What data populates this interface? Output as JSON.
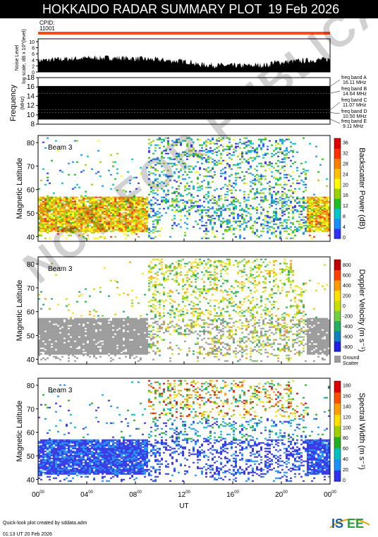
{
  "header": {
    "title": "HOKKAIDO RADAR SUMMARY PLOT",
    "date": "19 Feb 2026"
  },
  "cpid": {
    "label": "CPID:",
    "value": "11001"
  },
  "colors": {
    "orange_bar": "#ff4a14",
    "header_bg": "#000000"
  },
  "noise_panel": {
    "ylabel": "Noise Level",
    "ylabel2": "log scale, dB x 10^(level)",
    "ticks": [
      "0",
      "2",
      "4",
      "6",
      "8",
      "10"
    ]
  },
  "freq_panel": {
    "ylabel": "Frequency",
    "unit": "(MHz)",
    "ticks": [
      "8",
      "10",
      "12",
      "14",
      "16",
      "18"
    ],
    "bands": [
      {
        "name": "freq band A",
        "value": "16.11 MHz"
      },
      {
        "name": "freq band B",
        "value": "14.64 MHz"
      },
      {
        "name": "freq band C",
        "value": "11.07 MHz"
      },
      {
        "name": "freq band D",
        "value": "10.50 MHz"
      },
      {
        "name": "freq band E",
        "value": "9.11 MHz"
      }
    ]
  },
  "chart_data": [
    {
      "type": "heatmap",
      "panel": "power",
      "beam_label": "Beam 3",
      "ylabel": "Magnetic Latitude",
      "yticks": [
        "40",
        "50",
        "60",
        "70",
        "80"
      ],
      "ylim": [
        38,
        83
      ],
      "colorbar_label": "Backscatter Power (dB)",
      "colorbar_ticks": [
        "0",
        "4",
        "8",
        "12",
        "16",
        "20",
        "24",
        "28",
        "32",
        "36"
      ],
      "zlim": [
        0,
        38
      ]
    },
    {
      "type": "heatmap",
      "panel": "velocity",
      "beam_label": "Beam 3",
      "ylabel": "Magnetic Latitude",
      "yticks": [
        "40",
        "50",
        "60",
        "70",
        "80"
      ],
      "ylim": [
        38,
        83
      ],
      "colorbar_label": "Doppler Velocity (m s⁻¹)",
      "colorbar_ticks": [
        "800",
        "600",
        "400",
        "200",
        "0",
        "-200",
        "-400",
        "-600",
        "-800"
      ],
      "zlim": [
        -900,
        900
      ],
      "ground_scatter_label": [
        "Ground",
        "Scatter"
      ]
    },
    {
      "type": "heatmap",
      "panel": "width",
      "beam_label": "Beam 3",
      "ylabel": "Magnetic Latitude",
      "yticks": [
        "40",
        "50",
        "60",
        "70",
        "80"
      ],
      "ylim": [
        38,
        83
      ],
      "colorbar_label": "Spectral Width (m s⁻¹)",
      "colorbar_ticks": [
        "0",
        "20",
        "40",
        "60",
        "80",
        "100",
        "120",
        "140",
        "160",
        "180"
      ],
      "zlim": [
        0,
        190
      ]
    }
  ],
  "xaxis": {
    "label": "UT",
    "ticks": [
      {
        "main": "00",
        "sup": "00"
      },
      {
        "main": "04",
        "sup": "00"
      },
      {
        "main": "08",
        "sup": "00"
      },
      {
        "main": "12",
        "sup": "00"
      },
      {
        "main": "16",
        "sup": "00"
      },
      {
        "main": "20",
        "sup": "00"
      },
      {
        "main": "00",
        "sup": "00"
      }
    ]
  },
  "footer": {
    "line1": "Quick-look plot created by sddata.adm",
    "line2": "01:13 UT 20 Feb 2026",
    "logo_text": "ISEE"
  },
  "watermark": "NOT FOR PUBLICATION"
}
